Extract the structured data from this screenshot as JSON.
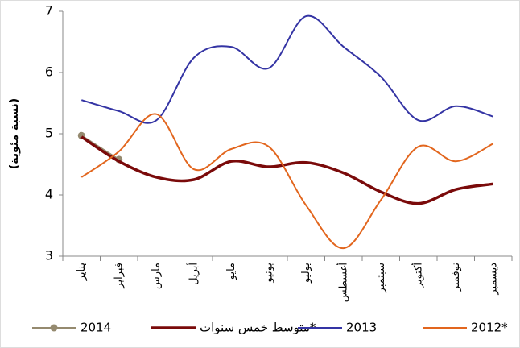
{
  "chart_data": {
    "type": "line",
    "y_label": "(نسبة مئوية)",
    "categories": [
      "يناير",
      "فبراير",
      "مارس",
      "أبريل",
      "مايو",
      "يونيو",
      "يوليو",
      "أغسطس",
      "سبتمبر",
      "أكتوبر",
      "نوفمبر",
      "ديسمبر"
    ],
    "series": [
      {
        "name": "2014",
        "color": "#958a6f",
        "markers": true,
        "values": [
          4.97,
          4.58,
          null,
          null,
          null,
          null,
          null,
          null,
          null,
          null,
          null,
          null
        ]
      },
      {
        "name": "متوسط خمس سنوات*",
        "color": "#7a0a0a",
        "values": [
          4.95,
          4.55,
          4.29,
          4.25,
          4.55,
          4.46,
          4.53,
          4.36,
          4.05,
          3.86,
          4.09,
          4.18
        ]
      },
      {
        "name": "2013",
        "color": "#3434a4",
        "values": [
          5.55,
          5.37,
          5.22,
          6.24,
          6.42,
          6.07,
          6.92,
          6.42,
          5.93,
          5.22,
          5.45,
          5.28
        ]
      },
      {
        "name": "2012*",
        "color": "#e2661e",
        "values": [
          4.29,
          4.71,
          5.32,
          4.42,
          4.75,
          4.79,
          3.83,
          3.13,
          3.92,
          4.79,
          4.55,
          4.84
        ]
      }
    ],
    "ylim": [
      3,
      7
    ],
    "yticks": [
      3,
      4,
      5,
      6,
      7
    ],
    "grid": false
  }
}
